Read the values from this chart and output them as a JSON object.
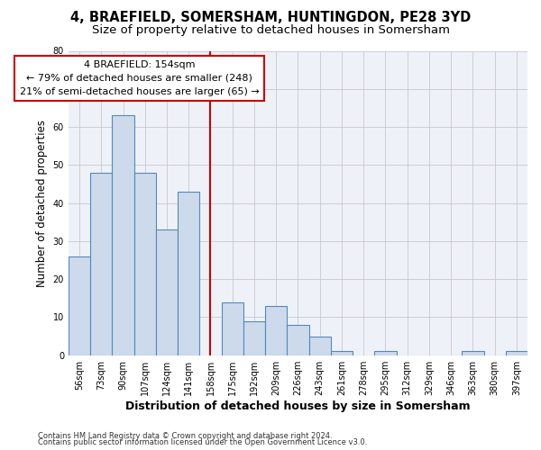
{
  "title1": "4, BRAEFIELD, SOMERSHAM, HUNTINGDON, PE28 3YD",
  "title2": "Size of property relative to detached houses in Somersham",
  "xlabel": "Distribution of detached houses by size in Somersham",
  "ylabel": "Number of detached properties",
  "categories": [
    "56sqm",
    "73sqm",
    "90sqm",
    "107sqm",
    "124sqm",
    "141sqm",
    "158sqm",
    "175sqm",
    "192sqm",
    "209sqm",
    "226sqm",
    "243sqm",
    "261sqm",
    "278sqm",
    "295sqm",
    "312sqm",
    "329sqm",
    "346sqm",
    "363sqm",
    "380sqm",
    "397sqm"
  ],
  "values": [
    26,
    48,
    63,
    48,
    33,
    43,
    0,
    14,
    9,
    13,
    8,
    5,
    1,
    0,
    1,
    0,
    0,
    0,
    1,
    0,
    1
  ],
  "bar_color": "#ccdaeb",
  "bar_edge_color": "#5588bb",
  "vline_x_index": 6,
  "vline_color": "#cc0000",
  "annotation_line1": "4 BRAEFIELD: 154sqm",
  "annotation_line2": "← 79% of detached houses are smaller (248)",
  "annotation_line3": "21% of semi-detached houses are larger (65) →",
  "annotation_box_color": "#ffffff",
  "annotation_box_edge_color": "#cc0000",
  "ylim": [
    0,
    80
  ],
  "yticks": [
    0,
    10,
    20,
    30,
    40,
    50,
    60,
    70,
    80
  ],
  "grid_color": "#c8c8d0",
  "bg_color": "#eef2f8",
  "footer1": "Contains HM Land Registry data © Crown copyright and database right 2024.",
  "footer2": "Contains public sector information licensed under the Open Government Licence v3.0.",
  "title1_fontsize": 10.5,
  "title2_fontsize": 9.5,
  "xlabel_fontsize": 9,
  "ylabel_fontsize": 8.5,
  "tick_fontsize": 7,
  "annotation_fontsize": 8,
  "footer_fontsize": 6
}
